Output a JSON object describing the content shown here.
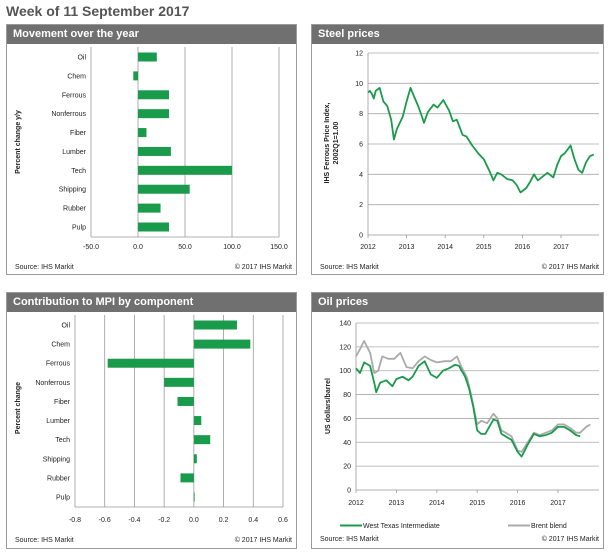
{
  "page_title": "Week of 11 September 2017",
  "colors": {
    "green": "#1a9b4b",
    "gray": "#aaaaaa",
    "header": "#707070"
  },
  "chart_data": [
    {
      "id": "movement",
      "panel_title": "Movement over the year",
      "type": "bar",
      "orientation": "horizontal",
      "categories": [
        "Oil",
        "Chem",
        "Ferrous",
        "Nonferrous",
        "Fiber",
        "Lumber",
        "Tech",
        "Shipping",
        "Rubber",
        "Pulp"
      ],
      "values": [
        20,
        -5,
        33,
        33,
        9,
        35,
        100,
        55,
        24,
        33
      ],
      "ylabel": "Percent change y/y",
      "xlim": [
        -50,
        150
      ],
      "xticks": [
        "-50.0",
        "0.0",
        "50.0",
        "100.0",
        "150.0"
      ],
      "xtick_values": [
        -50,
        0,
        50,
        100,
        150
      ],
      "grid": "vertical",
      "source": "Source: IHS Markit",
      "copyright": "© 2017 IHS Markit"
    },
    {
      "id": "steel",
      "panel_title": "Steel prices",
      "type": "line",
      "ylabel": "IHS Ferrous Price Index, 2002Q1=1.00",
      "ylim": [
        0,
        12
      ],
      "yticks": [
        0,
        2,
        4,
        6,
        8,
        10,
        12
      ],
      "xticks": [
        2012,
        2013,
        2014,
        2015,
        2016,
        2017
      ],
      "grid": "horizontal",
      "series": [
        {
          "color": "#1a9b4b",
          "x": [
            2012.0,
            2012.05,
            2012.1,
            2012.15,
            2012.2,
            2012.3,
            2012.4,
            2012.5,
            2012.6,
            2012.67,
            2012.75,
            2012.9,
            2013.0,
            2013.1,
            2013.2,
            2013.3,
            2013.4,
            2013.45,
            2013.55,
            2013.7,
            2013.8,
            2013.95,
            2014.1,
            2014.2,
            2014.3,
            2014.45,
            2014.55,
            2014.7,
            2014.85,
            2015.0,
            2015.15,
            2015.25,
            2015.35,
            2015.45,
            2015.6,
            2015.75,
            2015.85,
            2015.95,
            2016.1,
            2016.2,
            2016.3,
            2016.4,
            2016.55,
            2016.65,
            2016.8,
            2016.9,
            2017.0,
            2017.1,
            2017.25,
            2017.35,
            2017.45,
            2017.55,
            2017.65,
            2017.75,
            2017.85
          ],
          "y": [
            9.4,
            9.5,
            9.3,
            9.0,
            9.5,
            9.7,
            8.8,
            8.5,
            7.6,
            6.3,
            7.0,
            7.8,
            8.8,
            9.7,
            9.1,
            8.5,
            7.8,
            7.4,
            8.1,
            8.6,
            8.4,
            8.9,
            8.2,
            7.5,
            7.6,
            6.6,
            6.5,
            5.9,
            5.4,
            5.0,
            4.2,
            3.6,
            4.1,
            4.0,
            3.7,
            3.6,
            3.3,
            2.8,
            3.1,
            3.5,
            4.0,
            3.6,
            3.9,
            4.1,
            3.8,
            4.6,
            5.2,
            5.4,
            5.9,
            5.0,
            4.3,
            4.1,
            4.8,
            5.2,
            5.3
          ]
        }
      ],
      "source": "Source: IHS Markit",
      "copyright": "© 2017 IHS Markit"
    },
    {
      "id": "contribution",
      "panel_title": "Contribution  to MPI by component",
      "type": "bar",
      "orientation": "horizontal",
      "categories": [
        "Oil",
        "Chem",
        "Ferrous",
        "Nonferrous",
        "Fiber",
        "Lumber",
        "Tech",
        "Shipping",
        "Rubber",
        "Pulp"
      ],
      "values": [
        0.29,
        0.38,
        -0.58,
        -0.2,
        -0.11,
        0.05,
        0.11,
        0.02,
        -0.09,
        0.0
      ],
      "ylabel": "Percent change",
      "xlim": [
        -0.8,
        0.6
      ],
      "xticks": [
        "-0.8",
        "-0.6",
        "-0.4",
        "-0.2",
        "0.0",
        "0.2",
        "0.4",
        "0.6"
      ],
      "xtick_values": [
        -0.8,
        -0.6,
        -0.4,
        -0.2,
        0,
        0.2,
        0.4,
        0.6
      ],
      "grid": "vertical",
      "source": "Source: IHS Markit",
      "copyright": "© 2017 IHS Markit"
    },
    {
      "id": "oil",
      "panel_title": "Oil  prices",
      "type": "line",
      "ylabel": "US dollars/barrel",
      "ylim": [
        0,
        140
      ],
      "yticks": [
        0,
        20,
        40,
        60,
        80,
        100,
        120,
        140
      ],
      "xticks": [
        2012,
        2013,
        2014,
        2015,
        2016,
        2017
      ],
      "grid": "horizontal",
      "legend": "bottom",
      "series": [
        {
          "name": "West Texas Intermediate",
          "color": "#1a9b4b",
          "x": [
            2012.0,
            2012.1,
            2012.2,
            2012.35,
            2012.45,
            2012.5,
            2012.6,
            2012.75,
            2012.9,
            2013.0,
            2013.15,
            2013.3,
            2013.4,
            2013.55,
            2013.7,
            2013.85,
            2014.0,
            2014.15,
            2014.3,
            2014.45,
            2014.55,
            2014.7,
            2014.8,
            2014.9,
            2015.0,
            2015.1,
            2015.2,
            2015.4,
            2015.5,
            2015.6,
            2015.7,
            2015.85,
            2016.0,
            2016.1,
            2016.25,
            2016.4,
            2016.55,
            2016.7,
            2016.85,
            2017.0,
            2017.15,
            2017.3,
            2017.45,
            2017.55
          ],
          "y": [
            102,
            98,
            107,
            104,
            90,
            82,
            90,
            92,
            87,
            93,
            95,
            92,
            95,
            104,
            108,
            97,
            94,
            100,
            102,
            105,
            104,
            95,
            85,
            70,
            50,
            47,
            47,
            59,
            58,
            47,
            45,
            42,
            32,
            28,
            38,
            47,
            45,
            46,
            48,
            53,
            53,
            50,
            46,
            45
          ]
        },
        {
          "name": "Brent blend",
          "color": "#aaaaaa",
          "x": [
            2012.0,
            2012.1,
            2012.2,
            2012.35,
            2012.45,
            2012.55,
            2012.65,
            2012.8,
            2012.95,
            2013.1,
            2013.25,
            2013.4,
            2013.55,
            2013.7,
            2013.85,
            2014.0,
            2014.2,
            2014.35,
            2014.5,
            2014.6,
            2014.75,
            2014.85,
            2015.0,
            2015.1,
            2015.25,
            2015.4,
            2015.5,
            2015.6,
            2015.7,
            2015.85,
            2016.0,
            2016.1,
            2016.25,
            2016.4,
            2016.55,
            2016.7,
            2016.85,
            2017.0,
            2017.15,
            2017.3,
            2017.45,
            2017.55,
            2017.7,
            2017.8
          ],
          "y": [
            112,
            118,
            125,
            115,
            98,
            100,
            112,
            110,
            110,
            115,
            103,
            102,
            108,
            112,
            109,
            107,
            108,
            108,
            112,
            104,
            94,
            80,
            55,
            58,
            56,
            64,
            60,
            50,
            48,
            45,
            33,
            32,
            40,
            48,
            46,
            48,
            50,
            55,
            55,
            52,
            48,
            48,
            53,
            55
          ]
        }
      ],
      "source": "Source: IHS Markit",
      "copyright": "© 2017 IHS Markit"
    }
  ]
}
